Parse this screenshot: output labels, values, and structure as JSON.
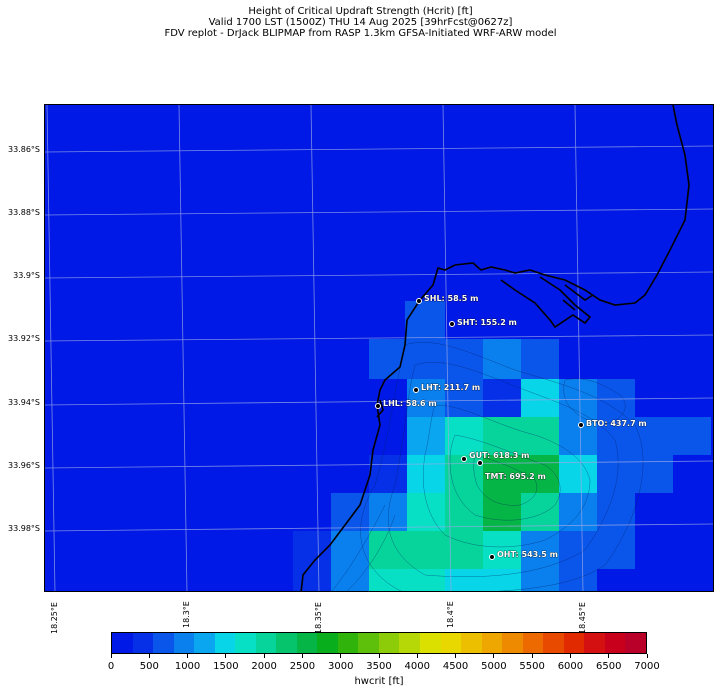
{
  "title": {
    "line1": "Height of Critical Updraft Strength (Hcrit) [ft]",
    "line2": "Valid 1700 LST (1500Z) THU 14 Aug 2025 [39hrFcst@0627z]",
    "line3": "FDV replot - DrJack BLIPMAP from RASP 1.3km GFSA-Initiated WRF-ARW model"
  },
  "lat_labels": [
    "33.86°S",
    "33.88°S",
    "33.9°S",
    "33.92°S",
    "33.94°S",
    "33.96°S",
    "33.98°S"
  ],
  "lon_labels": [
    "18.25°E",
    "18.3°E",
    "18.35°E",
    "18.4°E",
    "18.45°E"
  ],
  "stations": [
    {
      "code": "SHL",
      "label": "SHL: 58.5 m",
      "value_m": 58.5
    },
    {
      "code": "SHT",
      "label": "SHT: 155.2 m",
      "value_m": 155.2
    },
    {
      "code": "LHT",
      "label": "LHT: 211.7 m",
      "value_m": 211.7
    },
    {
      "code": "LHL",
      "label": "LHL: 58.6 m",
      "value_m": 58.6
    },
    {
      "code": "BTO",
      "label": "BTO: 437.7 m",
      "value_m": 437.7
    },
    {
      "code": "GUT",
      "label": "GUT: 618.3 m",
      "value_m": 618.3
    },
    {
      "code": "TMT",
      "label": "TMT: 695.2 m",
      "value_m": 695.2
    },
    {
      "code": "OHT",
      "label": "OHT: 543.5 m",
      "value_m": 543.5
    }
  ],
  "colorbar": {
    "label": "hwcrit [ft]",
    "ticks": [
      "0",
      "500",
      "1000",
      "1500",
      "2000",
      "2500",
      "3000",
      "3500",
      "4000",
      "4500",
      "5000",
      "5500",
      "6000",
      "6500",
      "7000"
    ],
    "colors": [
      "#0019e6",
      "#0530e8",
      "#0a55ea",
      "#0a7fee",
      "#0aa6f0",
      "#08d6e8",
      "#08e0c6",
      "#06d49a",
      "#05c46c",
      "#05b545",
      "#08ae1c",
      "#30b40c",
      "#5ec00a",
      "#8ccc08",
      "#b6d806",
      "#dbe000",
      "#e8d800",
      "#ecbf00",
      "#eea600",
      "#ee8a00",
      "#ec6a00",
      "#e84a00",
      "#e22a00",
      "#d41010",
      "#c8001c",
      "#b80028"
    ]
  },
  "legend_values": {
    "colors": {
      "ocean": "#0019e6",
      "grid": "#9aa8e8",
      "coast": "#000000"
    }
  }
}
